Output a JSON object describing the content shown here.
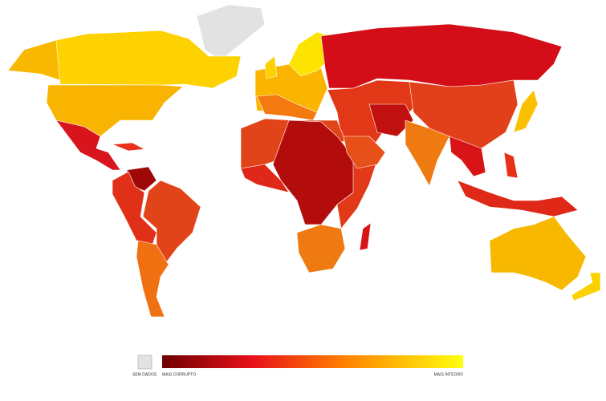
{
  "legend": {
    "no_data": "SEM DADOS",
    "low": "MAIS CORRUPTO",
    "high": "MAIS ÍNTEGRO"
  }
}
